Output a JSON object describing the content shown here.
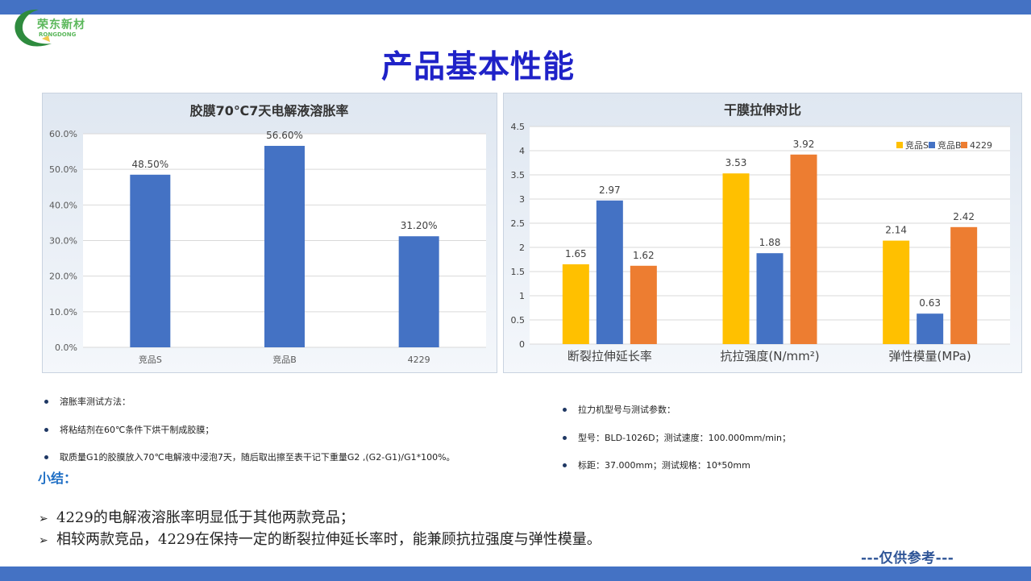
{
  "logo": {
    "name": "荣东新材",
    "sub": "RONGDONG"
  },
  "title": "产品基本性能",
  "colors": {
    "bar_blue": "#4472C4",
    "yellow": "#FFC000",
    "orange": "#ED7D31",
    "title_blue": "#1F22C8"
  },
  "chart_data": [
    {
      "type": "bar",
      "title": "胶膜70℃7天电解液溶胀率",
      "categories": [
        "竞品S",
        "竞品B",
        "4229"
      ],
      "values": [
        48.5,
        56.6,
        31.2
      ],
      "data_labels": [
        "48.50%",
        "56.60%",
        "31.20%"
      ],
      "ylim": [
        0,
        60
      ],
      "yticks": [
        "0.0%",
        "10.0%",
        "20.0%",
        "30.0%",
        "40.0%",
        "50.0%",
        "60.0%"
      ],
      "grid": true
    },
    {
      "type": "bar",
      "title": "干膜拉伸对比",
      "categories": [
        "断裂拉伸延长率",
        "抗拉强度(N/mm²)",
        "弹性模量(MPa)"
      ],
      "series": [
        {
          "name": "竞品S",
          "values": [
            1.65,
            3.53,
            2.14
          ],
          "color": "#FFC000"
        },
        {
          "name": "竞品B",
          "values": [
            2.97,
            1.88,
            0.63
          ],
          "color": "#4472C4"
        },
        {
          "name": "4229",
          "values": [
            1.62,
            3.92,
            2.42
          ],
          "color": "#ED7D31"
        }
      ],
      "ylim": [
        0,
        4.5
      ],
      "yticks": [
        "0",
        "0.5",
        "1",
        "1.5",
        "2",
        "2.5",
        "3",
        "3.5",
        "4",
        "4.5"
      ],
      "legend": "top-right",
      "grid": true
    }
  ],
  "notes_left": [
    "溶胀率测试方法：",
    "将粘结剂在60℃条件下烘干制成胶膜；",
    "取质量G1的胶膜放入70℃电解液中浸泡7天，随后取出擦至表干记下重量G2 ,(G2-G1)/G1*100%。"
  ],
  "notes_right": [
    "拉力机型号与测试参数：",
    "型号：BLD-1026D；测试速度：100.000mm/min；",
    "标距：37.000mm；测试规格：10*50mm"
  ],
  "summary": {
    "title": "小结：",
    "arrow": "➢",
    "items": [
      "4229的电解液溶胀率明显低于其他两款竞品；",
      "相较两款竞品，4229在保持一定的断裂拉伸延长率时，能兼顾抗拉强度与弹性模量。"
    ]
  },
  "reference": "---仅供参考---"
}
